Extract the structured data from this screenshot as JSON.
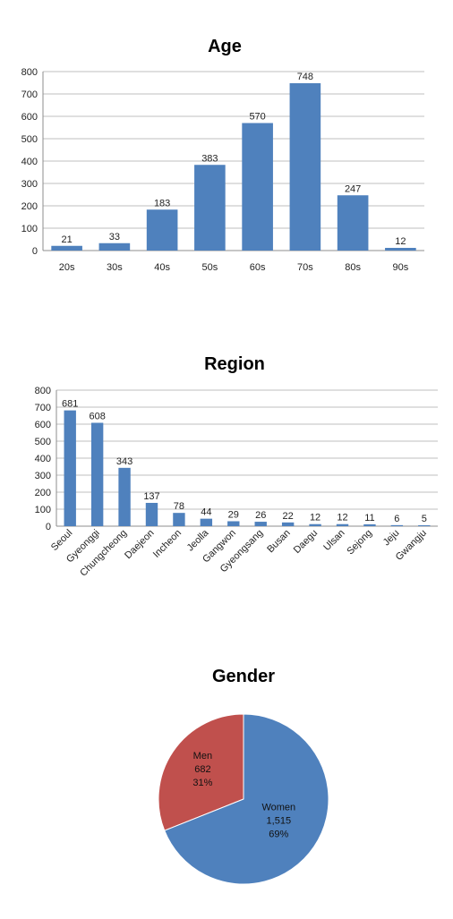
{
  "chart_data": [
    {
      "type": "bar",
      "title": "Age",
      "categories": [
        "20s",
        "30s",
        "40s",
        "50s",
        "60s",
        "70s",
        "80s",
        "90s"
      ],
      "values": [
        21,
        33,
        183,
        383,
        570,
        748,
        247,
        12
      ],
      "ylim": [
        0,
        800
      ],
      "yticks": [
        0,
        100,
        200,
        300,
        400,
        500,
        600,
        700,
        800
      ],
      "grid": true,
      "colors": {
        "bar": "#4f81bd",
        "grid": "#bfbfbf"
      }
    },
    {
      "type": "bar",
      "title": "Region",
      "categories": [
        "Seoul",
        "Gyeonggi",
        "Chungcheong",
        "Daejeon",
        "Incheon",
        "Jeolla",
        "Gangwon",
        "Gyeongsang",
        "Busan",
        "Daegu",
        "Ulsan",
        "Sejong",
        "Jeju",
        "Gwangju"
      ],
      "values": [
        681,
        608,
        343,
        137,
        78,
        44,
        29,
        26,
        22,
        12,
        12,
        11,
        6,
        5
      ],
      "ylim": [
        0,
        800
      ],
      "yticks": [
        0,
        100,
        200,
        300,
        400,
        500,
        600,
        700,
        800
      ],
      "grid": true,
      "colors": {
        "bar": "#4f81bd",
        "grid": "#bfbfbf"
      }
    },
    {
      "type": "pie",
      "title": "Gender",
      "slices": [
        {
          "name": "Men",
          "value": 682,
          "value_label": "682",
          "percent_label": "31%",
          "color": "#c0504d"
        },
        {
          "name": "Women",
          "value": 1515,
          "value_label": "1,515",
          "percent_label": "69%",
          "color": "#4f81bd"
        }
      ]
    }
  ]
}
